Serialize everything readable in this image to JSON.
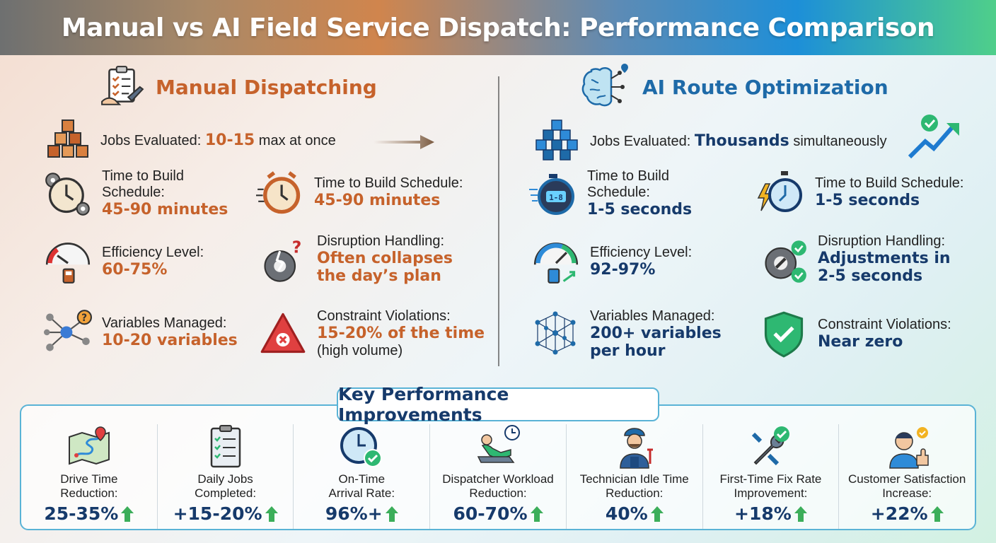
{
  "title": "Manual vs AI Field Service Dispatch: Performance Comparison",
  "manual": {
    "title": "Manual Dispatching",
    "jobs_label": "Jobs Evaluated: ",
    "jobs_value": "10-15",
    "jobs_suffix": " max at once",
    "time_a_label": "Time to Build Schedule:",
    "time_a_value": "45-90 minutes",
    "time_b_label": "Time to Build Schedule:",
    "time_b_value": "45-90 minutes",
    "efficiency_label": "Efficiency Level:",
    "efficiency_value": "60-75%",
    "disruption_label": "Disruption Handling:",
    "disruption_value": "Often collapses the day’s plan",
    "variables_label": "Variables Managed:",
    "variables_value": "10-20 variables",
    "violations_label": "Constraint Violations:",
    "violations_value": "15-20% of the time",
    "violations_note": "(high volume)"
  },
  "ai": {
    "title": "AI Route Optimization",
    "jobs_label": "Jobs Evaluated: ",
    "jobs_value": "Thousands",
    "jobs_suffix": " simultaneously",
    "time_a_label": "Time to Build Schedule:",
    "time_a_value": "1-5 seconds",
    "time_b_label": "Time to Build Schedule:",
    "time_b_value": "1-5 seconds",
    "efficiency_label": "Efficiency Level:",
    "efficiency_value": "92-97%",
    "disruption_label": "Disruption Handling:",
    "disruption_value": "Adjustments in 2-5 seconds",
    "variables_label": "Variables Managed:",
    "variables_value": "200+ variables per hour",
    "violations_label": "Constraint Violations:",
    "violations_value": "Near zero",
    "timer_display": "1-8"
  },
  "kpi": {
    "title": "Key Performance Improvements",
    "items": [
      {
        "label": "Drive Time Reduction:",
        "value": "25-35%",
        "icon": "map-route-icon"
      },
      {
        "label": "Daily Jobs Completed:",
        "value": "+15-20%",
        "icon": "checklist-icon"
      },
      {
        "label": "On-Time Arrival Rate:",
        "value": "96%+",
        "icon": "clock-check-icon"
      },
      {
        "label": "Dispatcher Workload Reduction:",
        "value": "60-70%",
        "icon": "relaxed-person-icon"
      },
      {
        "label": "Technician Idle Time Reduction:",
        "value": "40%",
        "icon": "technician-icon"
      },
      {
        "label": "First-Time Fix Rate Improvement:",
        "value": "+18%",
        "icon": "wrench-check-icon"
      },
      {
        "label": "Customer Satisfaction Increase:",
        "value": "+22%",
        "icon": "thumbs-up-icon"
      }
    ]
  },
  "colors": {
    "manual_accent": "#c6622b",
    "ai_accent": "#1e6aa8",
    "value_dark": "#163a6b",
    "up_arrow": "#3cae5a"
  }
}
